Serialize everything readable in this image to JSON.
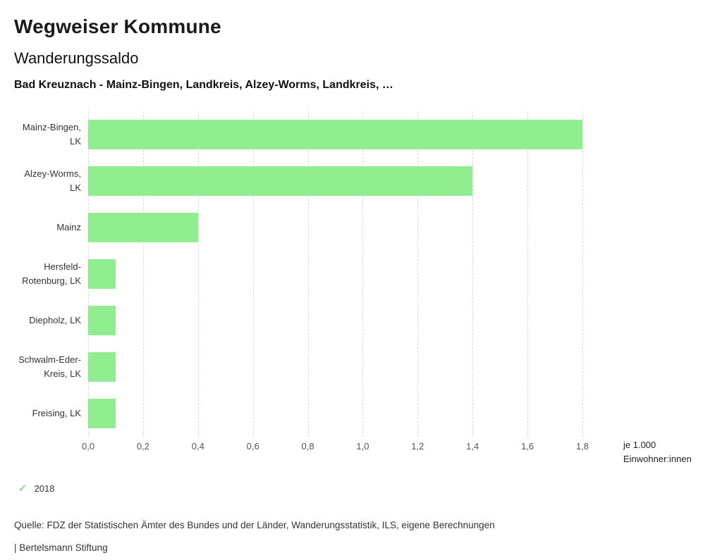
{
  "header": {
    "title": "Wegweiser Kommune",
    "subtitle": "Wanderungssaldo",
    "comparison": "Bad Kreuznach - Mainz-Bingen, Landkreis, Alzey-Worms, Landkreis, …"
  },
  "chart_data": {
    "type": "bar",
    "orientation": "horizontal",
    "title": "Wanderungssaldo",
    "categories": [
      "Mainz-Bingen, LK",
      "Alzey-Worms, LK",
      "Mainz",
      "Hersfeld-Rotenburg, LK",
      "Diepholz, LK",
      "Schwalm-Eder-Kreis, LK",
      "Freising, LK"
    ],
    "values": [
      1.8,
      1.4,
      0.4,
      0.1,
      0.1,
      0.1,
      0.1
    ],
    "series_name": "2018",
    "xlim": [
      0,
      1.8
    ],
    "x_tick_values": [
      0,
      0.2,
      0.4,
      0.6,
      0.8,
      1.0,
      1.2,
      1.4,
      1.6,
      1.8
    ],
    "x_tick_labels": [
      "0,0",
      "0,2",
      "0,4",
      "0,6",
      "0,8",
      "1,0",
      "1,2",
      "1,4",
      "1,6",
      "1,8"
    ],
    "unit_line1": "je 1.000",
    "unit_line2": "Einwohner:innen",
    "bar_color": "#90ee90",
    "grid_color": "#d9d9d9",
    "grid": "vertical-dashed",
    "legend_position": "bottom-left"
  },
  "legend": {
    "year": "2018",
    "check_color": "#8cd98c"
  },
  "footer": {
    "source": "Quelle: FDZ der Statistischen Ämter des Bundes und der Länder, Wanderungsstatistik, ILS, eigene Berechnungen",
    "brand": "| Bertelsmann Stiftung"
  }
}
